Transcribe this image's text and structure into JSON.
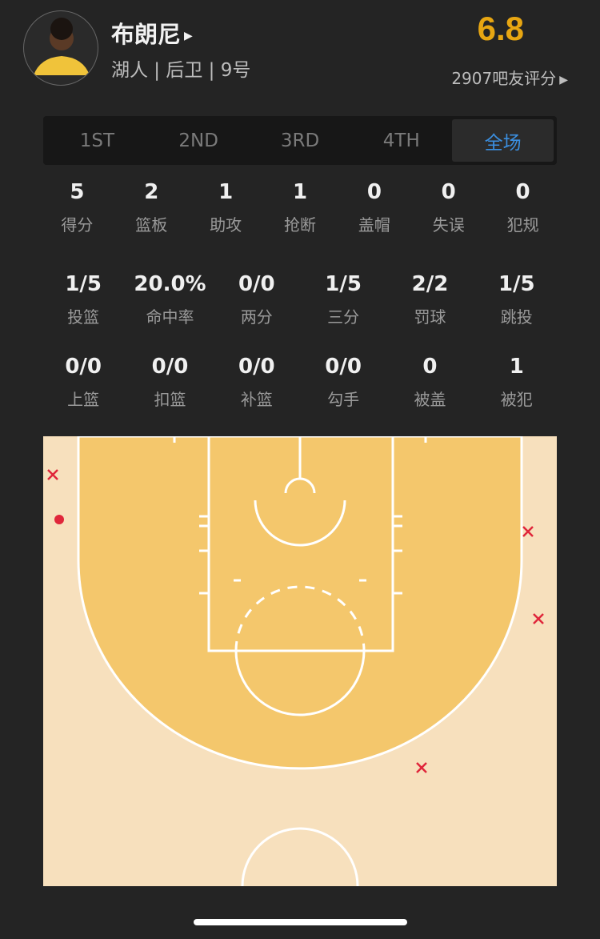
{
  "player": {
    "name": "布朗尼",
    "info": "湖人 | 后卫 | 9号",
    "rating": "6.8",
    "votes": "2907吧友评分"
  },
  "tabs": [
    {
      "label": "1ST"
    },
    {
      "label": "2ND"
    },
    {
      "label": "3RD"
    },
    {
      "label": "4TH"
    },
    {
      "label": "全场",
      "active": true
    }
  ],
  "stats_row1": [
    {
      "v": "5",
      "l": "得分"
    },
    {
      "v": "2",
      "l": "篮板"
    },
    {
      "v": "1",
      "l": "助攻"
    },
    {
      "v": "1",
      "l": "抢断"
    },
    {
      "v": "0",
      "l": "盖帽"
    },
    {
      "v": "0",
      "l": "失误"
    },
    {
      "v": "0",
      "l": "犯规"
    }
  ],
  "stats_row2": [
    {
      "v": "1/5",
      "l": "投篮"
    },
    {
      "v": "20.0%",
      "l": "命中率"
    },
    {
      "v": "0/0",
      "l": "两分"
    },
    {
      "v": "1/5",
      "l": "三分"
    },
    {
      "v": "2/2",
      "l": "罚球"
    },
    {
      "v": "1/5",
      "l": "跳投"
    }
  ],
  "stats_row3": [
    {
      "v": "0/0",
      "l": "上篮"
    },
    {
      "v": "0/0",
      "l": "扣篮"
    },
    {
      "v": "0/0",
      "l": "补篮"
    },
    {
      "v": "0/0",
      "l": "勾手"
    },
    {
      "v": "0",
      "l": "被盖"
    },
    {
      "v": "1",
      "l": "被犯"
    }
  ],
  "colors": {
    "rating": "#e7a612",
    "active_tab": "#3b8fe0",
    "court_inner": "#f4c76c",
    "court_outer": "#f7e0bd",
    "shot_marker": "#e0263a"
  },
  "shot_chart": {
    "shots": [
      {
        "result": "miss",
        "zone": "left corner three"
      },
      {
        "result": "make",
        "zone": "left corner three"
      },
      {
        "result": "miss",
        "zone": "right wing three"
      },
      {
        "result": "miss",
        "zone": "right wing three"
      },
      {
        "result": "miss",
        "zone": "right top three"
      }
    ]
  }
}
